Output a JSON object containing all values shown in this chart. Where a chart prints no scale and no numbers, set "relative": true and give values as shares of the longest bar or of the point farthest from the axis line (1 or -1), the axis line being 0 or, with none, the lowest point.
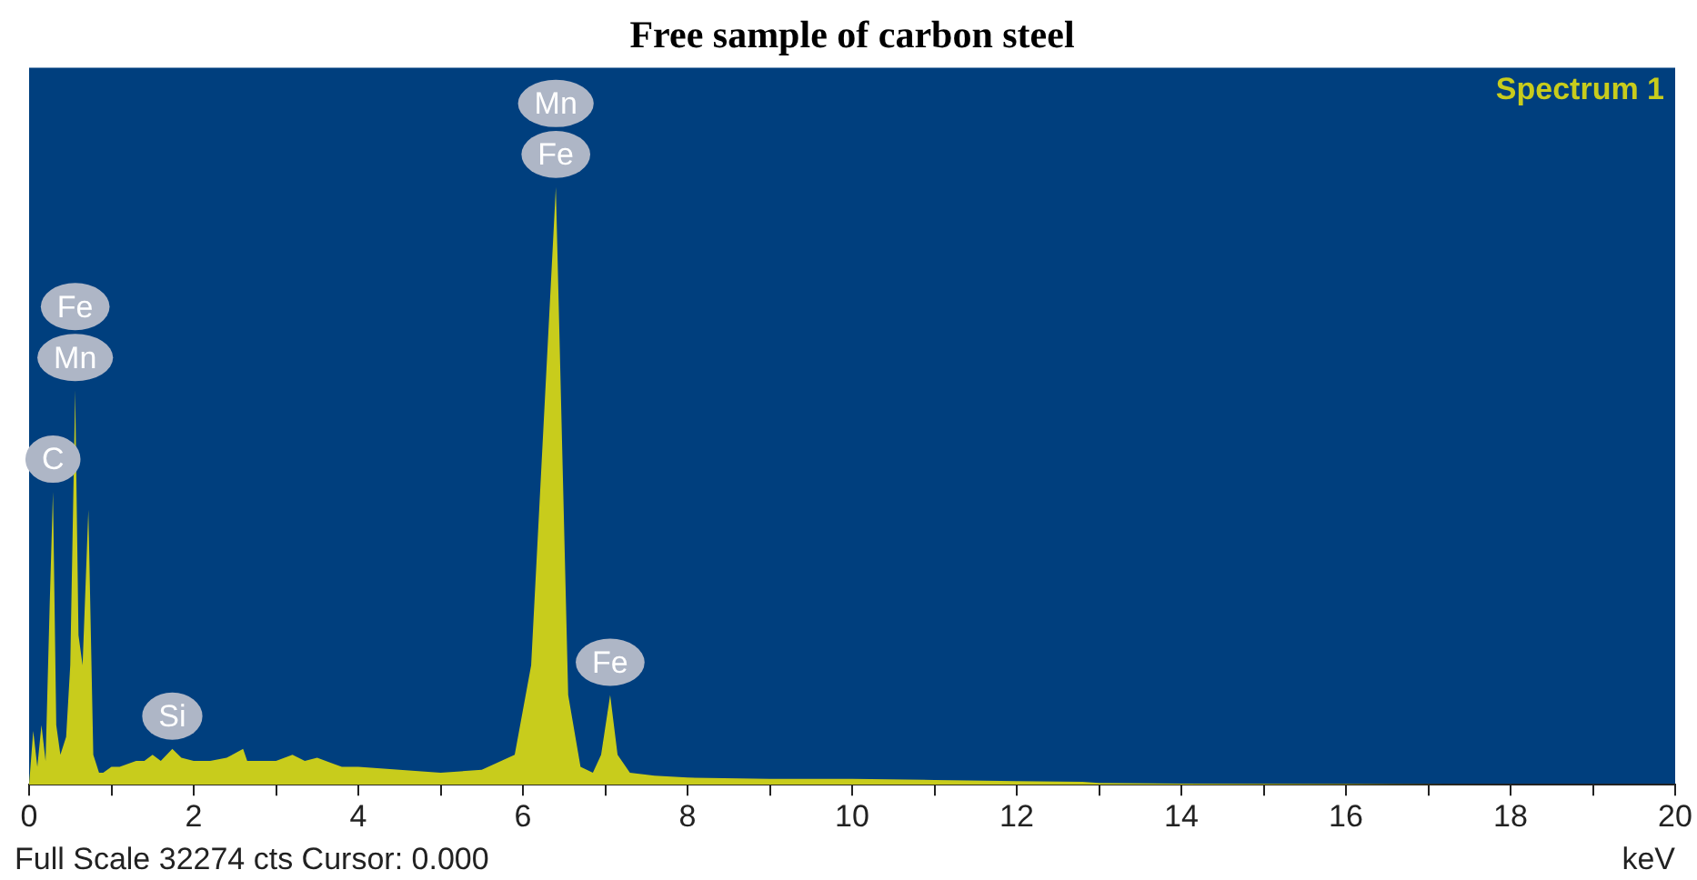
{
  "chart_data": {
    "type": "area",
    "title": "Free sample of carbon steel",
    "xlabel": "keV",
    "relative": true,
    "xlim": [
      0,
      20
    ],
    "xticks": [
      0,
      {
        "value": 1,
        "label": null
      },
      2,
      {
        "value": 3,
        "label": null
      },
      4,
      {
        "value": 5,
        "label": null
      },
      6,
      {
        "value": 7,
        "label": null
      },
      8,
      {
        "value": 9,
        "label": null
      },
      10,
      {
        "value": 11,
        "label": null
      },
      12,
      {
        "value": 13,
        "label": null
      },
      14,
      {
        "value": 15,
        "label": null
      },
      16,
      {
        "value": 17,
        "label": null
      },
      18,
      {
        "value": 19,
        "label": null
      },
      20
    ],
    "series": [
      {
        "name": "Spectrum 1",
        "color": "#c8cc1c",
        "x": [
          0,
          0.05,
          0.1,
          0.15,
          0.2,
          0.25,
          0.29,
          0.33,
          0.38,
          0.45,
          0.5,
          0.56,
          0.6,
          0.65,
          0.72,
          0.78,
          0.85,
          0.9,
          1.0,
          1.1,
          1.2,
          1.3,
          1.4,
          1.5,
          1.6,
          1.74,
          1.85,
          2.0,
          2.2,
          2.4,
          2.6,
          2.65,
          2.75,
          3.0,
          3.2,
          3.35,
          3.5,
          3.7,
          3.8,
          4.0,
          4.5,
          5.0,
          5.5,
          5.9,
          6.1,
          6.25,
          6.4,
          6.55,
          6.7,
          6.85,
          6.95,
          7.06,
          7.15,
          7.3,
          7.6,
          8,
          9,
          10,
          11,
          12,
          12.8,
          13,
          14,
          16,
          18,
          20
        ],
        "values": [
          0,
          0.09,
          0.03,
          0.1,
          0.04,
          0.3,
          0.49,
          0.1,
          0.05,
          0.08,
          0.2,
          0.66,
          0.25,
          0.2,
          0.46,
          0.05,
          0.02,
          0.02,
          0.03,
          0.03,
          0.035,
          0.04,
          0.04,
          0.05,
          0.04,
          0.06,
          0.045,
          0.04,
          0.04,
          0.045,
          0.06,
          0.04,
          0.04,
          0.04,
          0.05,
          0.04,
          0.045,
          0.035,
          0.03,
          0.03,
          0.025,
          0.02,
          0.025,
          0.05,
          0.2,
          0.6,
          1.0,
          0.15,
          0.03,
          0.02,
          0.05,
          0.15,
          0.05,
          0.02,
          0.015,
          0.012,
          0.01,
          0.01,
          0.008,
          0.006,
          0.005,
          0.003,
          0.002,
          0.001,
          0,
          0
        ]
      }
    ],
    "annotations": [
      {
        "text": "C",
        "x": 0.29,
        "y": 0.49
      },
      {
        "text": "Mn",
        "x": 0.56,
        "y": 0.66
      },
      {
        "text": "Fe",
        "x": 0.56,
        "y": 0.66
      },
      {
        "text": "Si",
        "x": 1.74,
        "y": 0.06
      },
      {
        "text": "Fe",
        "x": 6.4,
        "y": 1.0
      },
      {
        "text": "Mn",
        "x": 6.4,
        "y": 1.0
      },
      {
        "text": "Fe",
        "x": 7.06,
        "y": 0.15
      },
      "Full Scale 32274 cts Cursor: 0.000"
    ]
  }
}
